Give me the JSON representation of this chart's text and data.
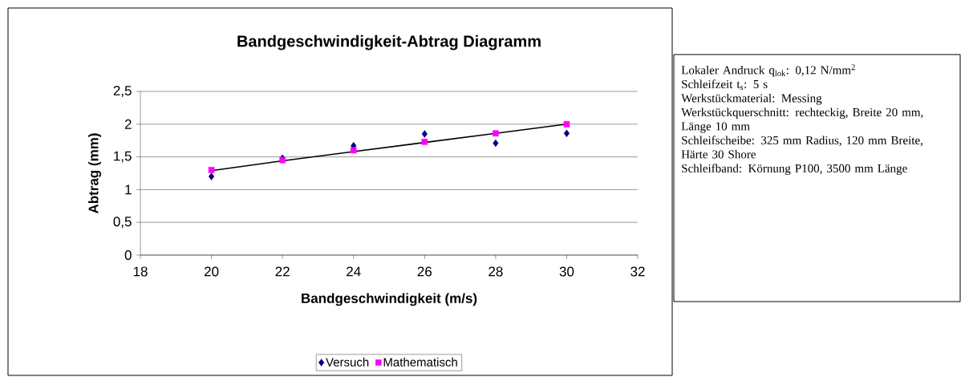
{
  "chart_data": {
    "type": "scatter",
    "title": "Bandgeschwindigkeit-Abtrag Diagramm",
    "xlabel": "Bandgeschwindigkeit (m/s)",
    "ylabel": "Abtrag (mm)",
    "x": [
      20,
      22,
      24,
      26,
      28,
      30
    ],
    "series": [
      {
        "name": "Versuch",
        "color": "#000080",
        "marker": "diamond",
        "values": [
          1.2,
          1.48,
          1.67,
          1.85,
          1.71,
          1.86
        ]
      },
      {
        "name": "Mathematisch",
        "color": "#ff00ff",
        "marker": "square",
        "values": [
          1.3,
          1.45,
          1.6,
          1.73,
          1.86,
          2.0
        ]
      },
      {
        "type": "line",
        "color": "#000000",
        "marker": "none",
        "values": [
          1.29,
          1.44,
          1.58,
          1.72,
          1.86,
          2.0
        ]
      }
    ],
    "xlim": [
      18,
      32
    ],
    "xticks": [
      18,
      20,
      22,
      24,
      26,
      28,
      30,
      32
    ],
    "ylim": [
      0,
      2.5
    ],
    "yticks": [
      0,
      {
        "value": 0.5,
        "label": "0,5"
      },
      1,
      {
        "value": 1.5,
        "label": "1,5"
      },
      2,
      {
        "value": 2.5,
        "label": "2,5"
      }
    ],
    "grid": "y",
    "legend": "bottom",
    "annotations": [
      "Lokaler Andruck q$_{lok}$: 0,12 N/mm$^{2}$",
      "Schleifzeit t$_{s}$:  5 s",
      "Werkstückmaterial: Messing",
      "Werkstückquerschnitt: rechteckig, Breite 20 mm, Länge 10 mm",
      "Schleifscheibe: 325 mm Radius, 120 mm Breite, Härte 30 Shore",
      "Schleifband: Körnung P100, 3500 mm Länge"
    ]
  }
}
